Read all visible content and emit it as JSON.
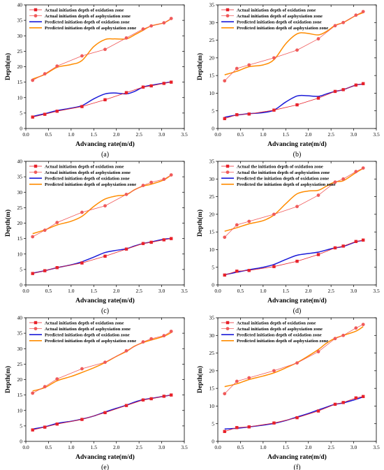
{
  "chart_data": [
    {
      "type": "line",
      "caption": "(a)",
      "xlabel": "Advancing rate(m/d)",
      "ylabel": "Depth(m)",
      "xlim": [
        0,
        3.5
      ],
      "ylim": [
        0,
        40
      ],
      "xticks": [
        "0.0",
        "0.5",
        "1.0",
        "1.5",
        "2.0",
        "2.5",
        "3.0",
        "3.5"
      ],
      "yticks": [
        "0",
        "5",
        "10",
        "15",
        "20",
        "25",
        "30",
        "35",
        "40"
      ],
      "legend_position": "top-left",
      "series": [
        {
          "name": "Actual initiation depth of oxidation zone",
          "color": "#e8212a",
          "marker": "square",
          "x": [
            0.15,
            0.42,
            0.69,
            1.24,
            1.75,
            2.22,
            2.59,
            2.77,
            3.05,
            3.21
          ],
          "y": [
            3.7,
            4.6,
            5.6,
            7.1,
            9.3,
            11.6,
            13.4,
            13.8,
            14.6,
            15.0
          ]
        },
        {
          "name": "Actual initiation depth of asphyxiation zone",
          "color": "#f05a5a",
          "marker": "circle",
          "x": [
            0.15,
            0.42,
            0.69,
            1.24,
            1.75,
            2.22,
            2.59,
            2.77,
            3.05,
            3.21
          ],
          "y": [
            15.6,
            17.7,
            20.2,
            23.5,
            25.6,
            29.3,
            32.2,
            33.2,
            34.2,
            35.6
          ]
        },
        {
          "name": "Predicted initiation depth of oxidation zone",
          "color": "#1a1ad8",
          "marker": "none",
          "x": [
            0.15,
            0.42,
            0.69,
            1.0,
            1.24,
            1.5,
            1.75,
            1.95,
            2.22,
            2.4,
            2.59,
            2.77,
            3.05,
            3.21
          ],
          "y": [
            3.9,
            4.8,
            5.8,
            6.6,
            7.4,
            9.6,
            11.2,
            11.5,
            11.2,
            12.0,
            13.4,
            14.0,
            14.7,
            15.1
          ]
        },
        {
          "name": "Predicted initiation depth of  asphyxiation zone",
          "color": "#ff8c00",
          "marker": "none",
          "x": [
            0.15,
            0.42,
            0.69,
            1.0,
            1.24,
            1.5,
            1.75,
            1.95,
            2.22,
            2.4,
            2.59,
            2.77,
            3.05,
            3.21
          ],
          "y": [
            16.0,
            17.5,
            19.8,
            20.7,
            22.0,
            26.5,
            28.8,
            29.0,
            29.0,
            30.3,
            31.8,
            33.2,
            34.2,
            35.5
          ]
        }
      ]
    },
    {
      "type": "line",
      "caption": "(b)",
      "xlabel": "Advancing rate(m/d)",
      "ylabel": "Depth(m)",
      "xlim": [
        0,
        3.5
      ],
      "ylim": [
        0,
        35
      ],
      "xticks": [
        "0.0",
        "0.5",
        "1.0",
        "1.5",
        "2.0",
        "2.5",
        "3.0",
        "3.5"
      ],
      "yticks": [
        "0",
        "5",
        "10",
        "15",
        "20",
        "25",
        "30",
        "35"
      ],
      "legend_position": "top-left",
      "series": [
        {
          "name": "Actual initiation depth of oxidation zone",
          "color": "#e8212a",
          "marker": "square",
          "x": [
            0.15,
            0.42,
            0.69,
            1.24,
            1.75,
            2.22,
            2.59,
            2.77,
            3.05,
            3.21
          ],
          "y": [
            2.8,
            3.9,
            4.1,
            5.2,
            6.7,
            8.6,
            10.5,
            11.0,
            12.3,
            12.7
          ]
        },
        {
          "name": "Actual initiation depth of asphyxiation zone",
          "color": "#f05a5a",
          "marker": "circle",
          "x": [
            0.15,
            0.42,
            0.69,
            1.24,
            1.75,
            2.22,
            2.59,
            2.77,
            3.05,
            3.21
          ],
          "y": [
            13.5,
            17.0,
            18.0,
            20.0,
            22.2,
            25.4,
            29.1,
            30.0,
            32.1,
            33.1
          ]
        },
        {
          "name": "Predicted initiation depth of oxidation zone",
          "color": "#1a1ad8",
          "marker": "none",
          "x": [
            0.15,
            0.42,
            0.69,
            1.0,
            1.24,
            1.5,
            1.75,
            1.95,
            2.22,
            2.4,
            2.59,
            2.77,
            3.05,
            3.21
          ],
          "y": [
            3.2,
            3.8,
            4.2,
            4.5,
            5.2,
            7.5,
            9.2,
            9.3,
            9.1,
            9.8,
            10.5,
            11.0,
            12.3,
            12.6
          ]
        },
        {
          "name": "Predicted initiation depth of asphyxiation zone",
          "color": "#ff8c00",
          "marker": "none",
          "x": [
            0.15,
            0.42,
            0.69,
            1.0,
            1.24,
            1.5,
            1.75,
            1.95,
            2.22,
            2.4,
            2.59,
            2.77,
            3.05,
            3.21
          ],
          "y": [
            15.2,
            16.2,
            17.5,
            18.0,
            19.5,
            24.0,
            26.8,
            27.0,
            26.5,
            27.5,
            29.2,
            30.0,
            32.0,
            32.8
          ]
        }
      ]
    },
    {
      "type": "line",
      "caption": "(c)",
      "xlabel": "Advancing rate(m/d)",
      "ylabel": "Depth(m)",
      "xlim": [
        0,
        3.5
      ],
      "ylim": [
        0,
        40
      ],
      "xticks": [
        "0.0",
        "0.5",
        "1.0",
        "1.5",
        "2.0",
        "2.5",
        "3.0",
        "3.5"
      ],
      "yticks": [
        "0",
        "5",
        "10",
        "15",
        "20",
        "25",
        "30",
        "35",
        "40"
      ],
      "legend_position": "top-left",
      "series": [
        {
          "name": "Actual initiation depth of oxidation zone",
          "color": "#e8212a",
          "marker": "square",
          "x": [
            0.15,
            0.42,
            0.69,
            1.24,
            1.75,
            2.22,
            2.59,
            2.77,
            3.05,
            3.21
          ],
          "y": [
            3.7,
            4.6,
            5.6,
            7.1,
            9.3,
            11.6,
            13.4,
            13.8,
            14.6,
            15.0
          ]
        },
        {
          "name": "Actual initiation depth of asphyxiation zone",
          "color": "#f05a5a",
          "marker": "circle",
          "x": [
            0.15,
            0.42,
            0.69,
            1.24,
            1.75,
            2.22,
            2.59,
            2.77,
            3.05,
            3.21
          ],
          "y": [
            15.6,
            17.7,
            20.2,
            23.5,
            25.6,
            29.3,
            32.2,
            33.2,
            34.2,
            35.6
          ]
        },
        {
          "name": "Predicted initiation depth of oxidation zone",
          "color": "#1a1ad8",
          "marker": "none",
          "x": [
            0.15,
            0.42,
            0.69,
            1.0,
            1.24,
            1.5,
            1.75,
            2.0,
            2.22,
            2.4,
            2.59,
            2.77,
            3.05,
            3.21
          ],
          "y": [
            3.8,
            4.6,
            5.6,
            6.5,
            7.5,
            9.0,
            10.5,
            11.2,
            11.7,
            12.6,
            13.4,
            13.9,
            14.8,
            15.0
          ]
        },
        {
          "name": "Predicted initiation depth of asphyxiation zone",
          "color": "#ff8c00",
          "marker": "none",
          "x": [
            0.15,
            0.42,
            0.69,
            1.0,
            1.24,
            1.5,
            1.75,
            2.0,
            2.22,
            2.4,
            2.59,
            2.77,
            3.05,
            3.21
          ],
          "y": [
            16.6,
            17.8,
            19.4,
            20.6,
            22.2,
            25.4,
            27.8,
            28.8,
            29.2,
            30.8,
            32.0,
            32.6,
            34.0,
            35.6
          ]
        }
      ]
    },
    {
      "type": "line",
      "caption": "(d)",
      "xlabel": "Advancing rate(m/d)",
      "ylabel": "Depth(m)",
      "xlim": [
        0,
        3.5
      ],
      "ylim": [
        0,
        35
      ],
      "xticks": [
        "0.0",
        "0.5",
        "1.0",
        "1.5",
        "2.0",
        "2.5",
        "3.0",
        "3.5"
      ],
      "yticks": [
        "0",
        "5",
        "10",
        "15",
        "20",
        "25",
        "30",
        "35"
      ],
      "legend_position": "top-left",
      "series": [
        {
          "name": "Actual the initiation depth of oxidation zone",
          "color": "#e8212a",
          "marker": "square",
          "x": [
            0.15,
            0.42,
            0.69,
            1.24,
            1.75,
            2.22,
            2.59,
            2.77,
            3.05,
            3.21
          ],
          "y": [
            2.8,
            3.9,
            4.1,
            5.2,
            6.7,
            8.6,
            10.5,
            11.0,
            12.3,
            12.7
          ]
        },
        {
          "name": "Actual the initiation depth of asphyxiation zone",
          "color": "#f05a5a",
          "marker": "circle",
          "x": [
            0.15,
            0.42,
            0.69,
            1.24,
            1.75,
            2.22,
            2.59,
            2.77,
            3.05,
            3.21
          ],
          "y": [
            13.5,
            17.0,
            18.0,
            20.0,
            22.2,
            25.4,
            29.1,
            30.0,
            32.1,
            33.1
          ]
        },
        {
          "name": "Predicted the initiation depth of oxidation zone",
          "color": "#1a1ad8",
          "marker": "none",
          "x": [
            0.15,
            0.42,
            0.69,
            1.0,
            1.24,
            1.5,
            1.75,
            2.0,
            2.22,
            2.4,
            2.59,
            2.77,
            3.05,
            3.21
          ],
          "y": [
            2.9,
            3.6,
            4.3,
            5.0,
            5.8,
            7.2,
            8.4,
            8.9,
            9.3,
            9.9,
            10.5,
            10.9,
            12.2,
            12.6
          ]
        },
        {
          "name": "Predicted the initiation depth of asphyxiation zone",
          "color": "#ff8c00",
          "marker": "none",
          "x": [
            0.15,
            0.42,
            0.69,
            1.0,
            1.24,
            1.5,
            1.75,
            2.0,
            2.22,
            2.4,
            2.59,
            2.77,
            3.05,
            3.21
          ],
          "y": [
            15.2,
            16.2,
            17.3,
            18.2,
            19.8,
            23.0,
            25.8,
            26.6,
            26.8,
            28.0,
            29.2,
            29.5,
            31.8,
            33.0
          ]
        }
      ]
    },
    {
      "type": "line",
      "caption": "(e)",
      "xlabel": "Advancing rate(m/d)",
      "ylabel": "Depth(m)",
      "xlim": [
        0,
        3.5
      ],
      "ylim": [
        0,
        40
      ],
      "xticks": [
        "0.0",
        "0.5",
        "1.0",
        "1.5",
        "2.0",
        "2.5",
        "3.0",
        "3.5"
      ],
      "yticks": [
        "0",
        "5",
        "10",
        "15",
        "20",
        "25",
        "30",
        "35",
        "40"
      ],
      "legend_position": "top-left",
      "series": [
        {
          "name": "Actual initiation depth of oxidation zone",
          "color": "#e8212a",
          "marker": "square",
          "x": [
            0.15,
            0.42,
            0.69,
            1.24,
            1.75,
            2.22,
            2.59,
            2.77,
            3.05,
            3.21
          ],
          "y": [
            3.7,
            4.6,
            5.6,
            7.1,
            9.3,
            11.6,
            13.4,
            13.8,
            14.6,
            15.0
          ]
        },
        {
          "name": "Actual initiation depth of asphyxiation zone",
          "color": "#f05a5a",
          "marker": "circle",
          "x": [
            0.15,
            0.42,
            0.69,
            1.24,
            1.75,
            2.22,
            2.59,
            2.77,
            3.05,
            3.21
          ],
          "y": [
            15.6,
            17.7,
            20.2,
            23.5,
            25.6,
            29.3,
            32.2,
            33.2,
            34.2,
            35.6
          ]
        },
        {
          "name": "Predicted initiation depth of oxidation zone",
          "color": "#1a1ad8",
          "marker": "none",
          "x": [
            0.15,
            0.42,
            0.69,
            1.0,
            1.24,
            1.5,
            1.75,
            2.0,
            2.22,
            2.4,
            2.59,
            2.77,
            3.05,
            3.21
          ],
          "y": [
            4.0,
            4.7,
            5.8,
            6.5,
            7.2,
            8.2,
            9.5,
            10.7,
            11.7,
            12.7,
            13.5,
            13.9,
            14.6,
            15.0
          ]
        },
        {
          "name": "Predicted initiation depth of asphyxiation zone",
          "color": "#ff8c00",
          "marker": "none",
          "x": [
            0.15,
            0.42,
            0.69,
            1.0,
            1.24,
            1.5,
            1.75,
            2.0,
            2.22,
            2.4,
            2.59,
            2.77,
            3.05,
            3.21
          ],
          "y": [
            16.3,
            17.4,
            19.6,
            21.0,
            22.3,
            23.8,
            25.5,
            27.5,
            29.1,
            30.8,
            32.0,
            32.8,
            34.0,
            35.2
          ]
        }
      ]
    },
    {
      "type": "line",
      "caption": "(f)",
      "xlabel": "Advancing rate(m/d)",
      "ylabel": "Depth(m)",
      "xlim": [
        0,
        3.5
      ],
      "ylim": [
        0,
        35
      ],
      "xticks": [
        "0.0",
        "0.5",
        "1.0",
        "1.5",
        "2.0",
        "2.5",
        "3.0",
        "3.5"
      ],
      "yticks": [
        "0",
        "5",
        "10",
        "15",
        "20",
        "25",
        "30",
        "35"
      ],
      "legend_position": "top-left",
      "series": [
        {
          "name": "Actual initiation depth of oxidation zone",
          "color": "#e8212a",
          "marker": "square",
          "x": [
            0.15,
            0.42,
            0.69,
            1.24,
            1.75,
            2.22,
            2.59,
            2.77,
            3.05,
            3.21
          ],
          "y": [
            2.8,
            3.9,
            4.1,
            5.2,
            6.7,
            8.6,
            10.5,
            11.0,
            12.3,
            12.7
          ]
        },
        {
          "name": "Actual initiation depth of asphyxiation zone",
          "color": "#f05a5a",
          "marker": "circle",
          "x": [
            0.15,
            0.42,
            0.69,
            1.24,
            1.75,
            2.22,
            2.59,
            2.77,
            3.05,
            3.21
          ],
          "y": [
            13.5,
            17.0,
            18.0,
            20.0,
            22.2,
            25.4,
            29.1,
            30.0,
            32.1,
            33.1
          ]
        },
        {
          "name": "Predicted initiation depth of oxidation zone",
          "color": "#1a1ad8",
          "marker": "none",
          "x": [
            0.15,
            0.42,
            0.69,
            1.0,
            1.24,
            1.5,
            1.75,
            2.0,
            2.22,
            2.4,
            2.59,
            2.77,
            3.05,
            3.21
          ],
          "y": [
            3.5,
            3.7,
            4.1,
            4.6,
            5.1,
            5.9,
            6.9,
            7.9,
            8.9,
            9.7,
            10.5,
            10.9,
            11.9,
            12.6
          ]
        },
        {
          "name": "Predicted initiation depth of asphyxiation zone",
          "color": "#ff8c00",
          "marker": "none",
          "x": [
            0.15,
            0.42,
            0.69,
            1.0,
            1.24,
            1.5,
            1.75,
            2.0,
            2.22,
            2.4,
            2.59,
            2.77,
            3.05,
            3.21
          ],
          "y": [
            15.5,
            16.3,
            17.5,
            18.5,
            19.4,
            20.8,
            22.3,
            24.2,
            26.0,
            27.8,
            29.2,
            30.0,
            31.2,
            32.5
          ]
        }
      ]
    }
  ]
}
